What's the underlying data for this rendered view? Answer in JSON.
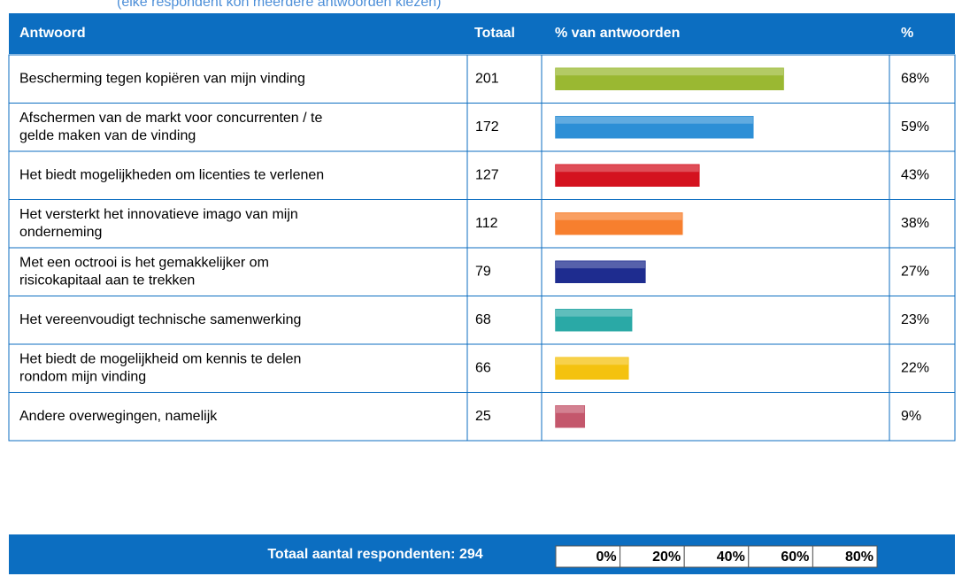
{
  "note_text": "(elke respondent kon meerdere antwoorden kiezen)",
  "table": {
    "headers": [
      "Antwoord",
      "Totaal",
      "% van antwoorden",
      "%"
    ],
    "rows": [
      {
        "answer": "Bescherming tegen kopiëren van mijn vinding",
        "total": "201",
        "percent": 68,
        "percent_label": "68%",
        "color": "#9ab832"
      },
      {
        "answer": "Afschermen van de markt voor concurrenten / te gelde maken van de vinding",
        "total": "172",
        "percent": 59,
        "percent_label": "59%",
        "color": "#2d8fd6"
      },
      {
        "answer": "Het biedt mogelijkheden om licenties te verlenen",
        "total": "127",
        "percent": 43,
        "percent_label": "43%",
        "color": "#d4121f"
      },
      {
        "answer": "Het versterkt het innovatieve imago van mijn onderneming",
        "total": "112",
        "percent": 38,
        "percent_label": "38%",
        "color": "#f77f2e"
      },
      {
        "answer": "Met een octrooi is het gemakkelijker om risicokapitaal aan te trekken",
        "total": "79",
        "percent": 27,
        "percent_label": "27%",
        "color": "#1e2c8f"
      },
      {
        "answer": "Het vereenvoudigt technische samenwerking",
        "total": "68",
        "percent": 23,
        "percent_label": "23%",
        "color": "#2aa9a6"
      },
      {
        "answer": "Het biedt de mogelijkheid om kennis te delen rondom mijn vinding",
        "total": "66",
        "percent": 22,
        "percent_label": "22%",
        "color": "#f4c20f"
      },
      {
        "answer": "Andere overwegingen, namelijk",
        "total": "25",
        "percent": 9,
        "percent_label": "9%",
        "color": "#c4576c"
      }
    ],
    "footer": "Totaal aantal respondenten: 294",
    "xlim": [
      0,
      100
    ],
    "xticks": [
      {
        "value": 0,
        "label": "0%"
      },
      {
        "value": 20,
        "label": "20%"
      },
      {
        "value": 40,
        "label": "40%"
      },
      {
        "value": 60,
        "label": "60%"
      },
      {
        "value": 80,
        "label": "80%"
      }
    ]
  }
}
